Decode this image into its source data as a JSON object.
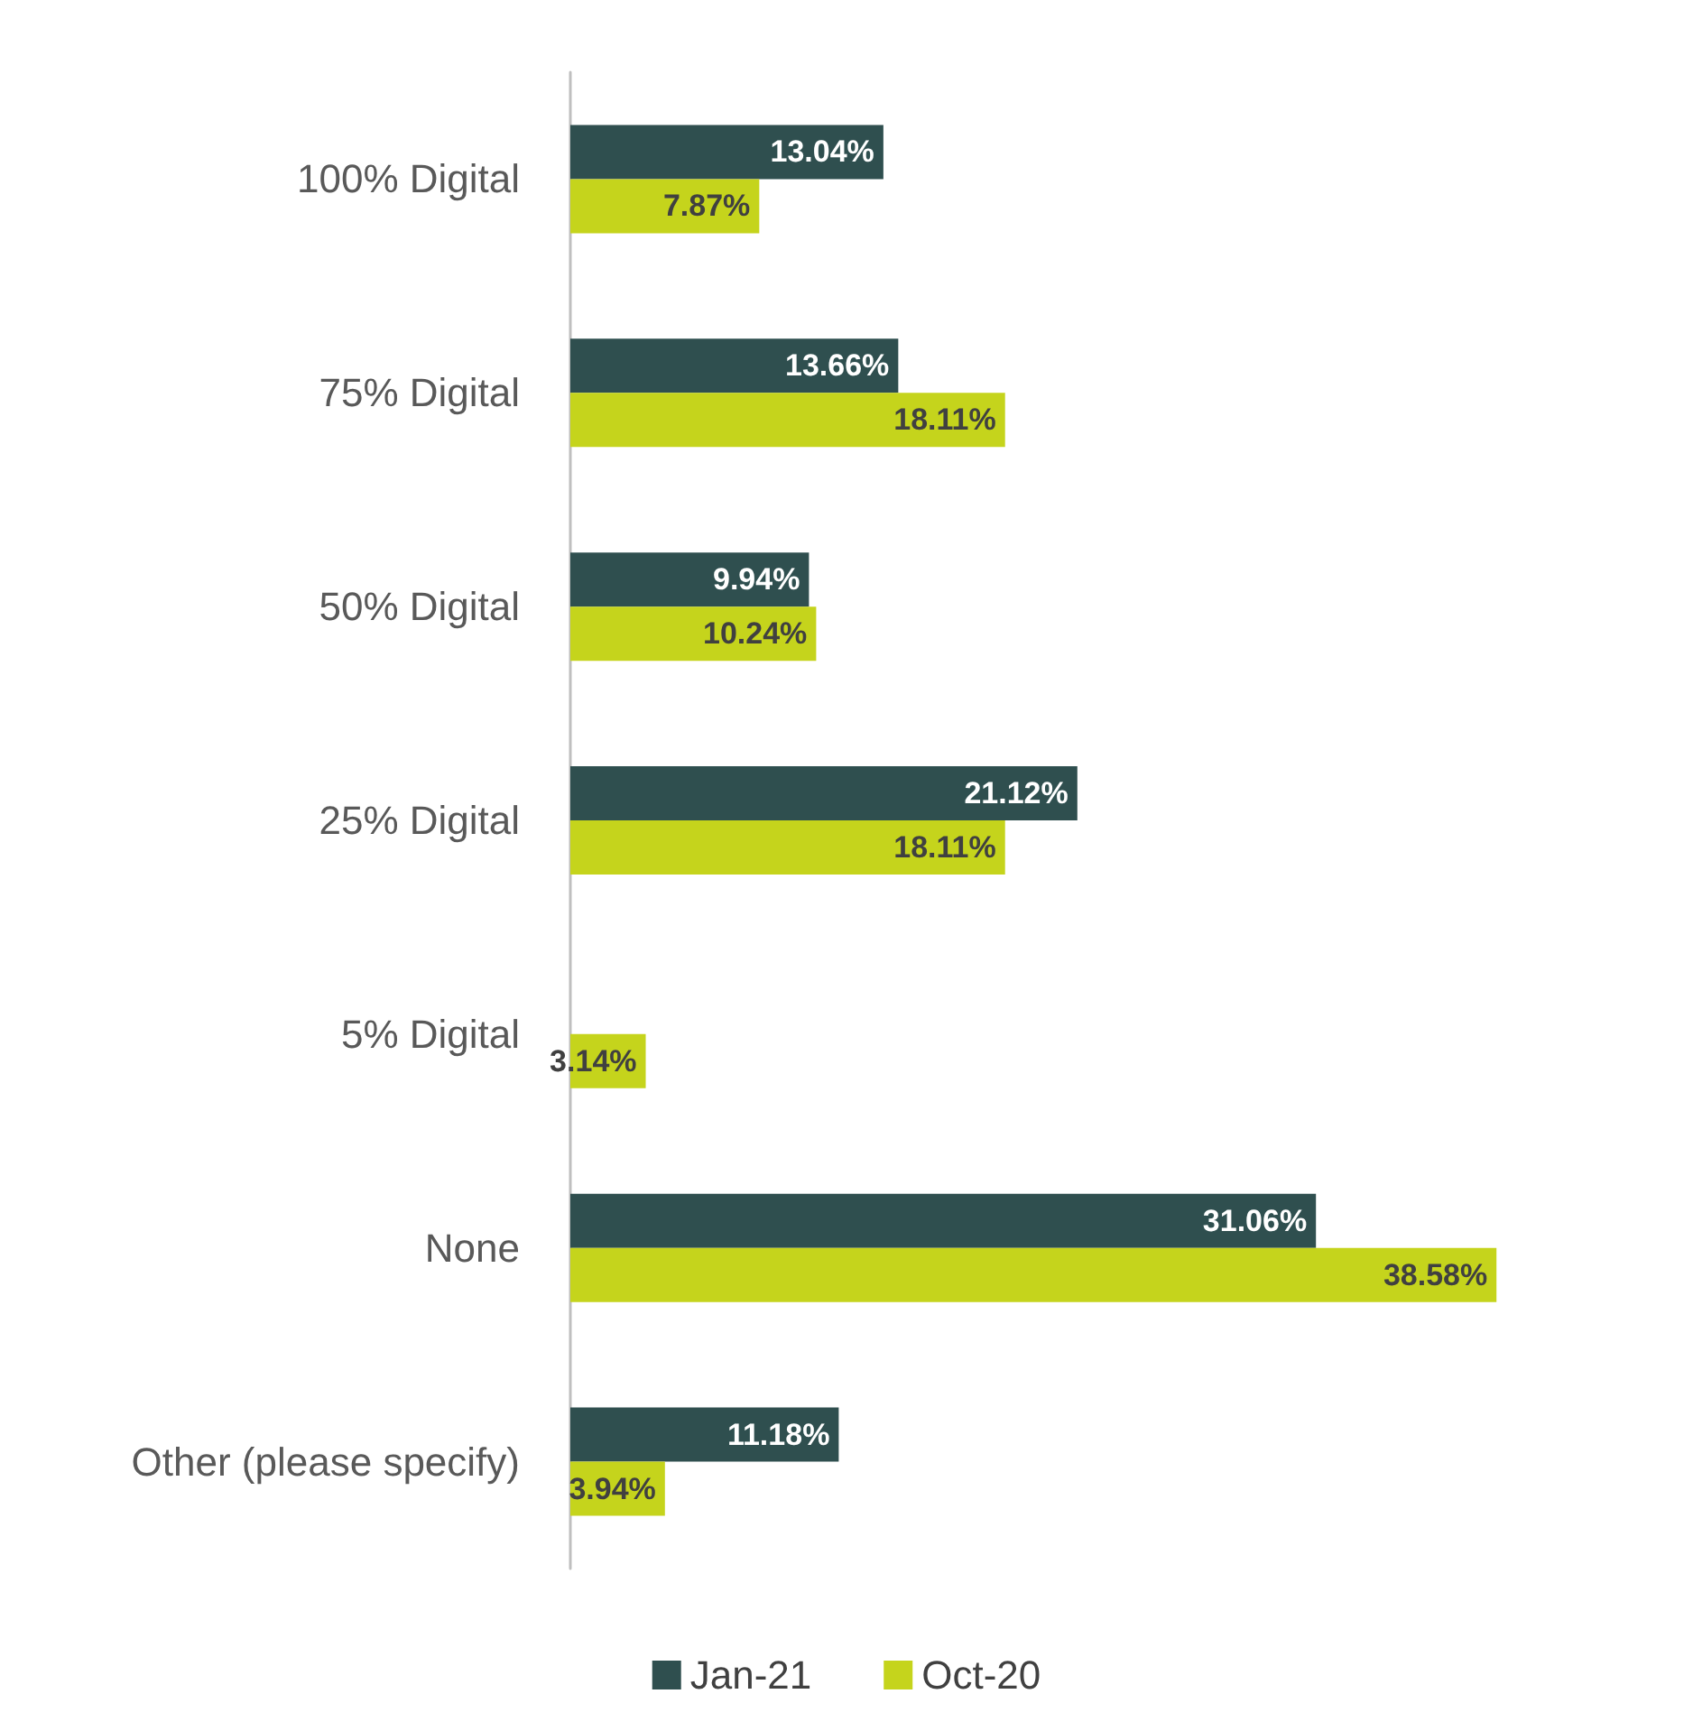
{
  "chart_data": {
    "type": "bar",
    "orientation": "horizontal",
    "categories": [
      "100% Digital",
      "75% Digital",
      "50% Digital",
      "25% Digital",
      "5% Digital",
      "None",
      "Other (please specify)"
    ],
    "series": [
      {
        "name": "Jan-21",
        "color": "#2f4f4f",
        "values": [
          13.04,
          13.66,
          9.94,
          21.12,
          null,
          31.06,
          11.18
        ],
        "value_labels": [
          "13.04%",
          "13.66%",
          "9.94%",
          "21.12%",
          null,
          "31.06%",
          "11.18%"
        ]
      },
      {
        "name": "Oct-20",
        "color": "#c5d41c",
        "values": [
          7.87,
          18.11,
          10.24,
          18.11,
          3.14,
          38.58,
          3.94
        ],
        "value_labels": [
          "7.87%",
          "18.11%",
          "10.24%",
          "18.11%",
          "3.14%",
          "38.58%",
          "3.94%"
        ]
      }
    ],
    "legend": "bottom"
  }
}
